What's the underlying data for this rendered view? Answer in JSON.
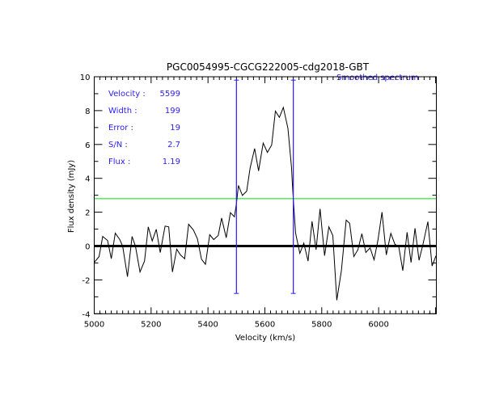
{
  "chart_data": {
    "type": "line",
    "title": "PGC0054995-CGCG222005-cdg2018-GBT",
    "xlabel": "Velocity (km/s)",
    "ylabel": "Flux density (mJy)",
    "xlim": [
      5000,
      6203
    ],
    "ylim": [
      -4,
      10
    ],
    "x_ticks": [
      5000,
      5200,
      5400,
      5600,
      5800,
      6000
    ],
    "y_ticks": [
      -4,
      -2,
      0,
      2,
      4,
      6,
      8,
      10
    ],
    "legend": "Smoothed spectrum",
    "legend_placement": "top-right",
    "colors": {
      "spectrum": "#000000",
      "markers": "#2a1cf0",
      "threshold": "#00e000",
      "baseline": "#000000"
    },
    "baseline": 0,
    "threshold_level": 2.8,
    "marker_lines": [
      5500,
      5700
    ],
    "marker_ends": [
      -2.8,
      9.8
    ],
    "annotations": [
      {
        "label": "Velocity :",
        "value": "5599"
      },
      {
        "label": "Width :",
        "value": "199"
      },
      {
        "label": "Error :",
        "value": "19"
      },
      {
        "label": "S/N :",
        "value": "2.7"
      },
      {
        "label": "Flux :",
        "value": "1.19"
      }
    ],
    "series": [
      {
        "name": "Smoothed spectrum",
        "x": [
          5000,
          5017,
          5030,
          5047,
          5060,
          5074,
          5090,
          5100,
          5117,
          5133,
          5145,
          5161,
          5177,
          5190,
          5204,
          5218,
          5232,
          5249,
          5262,
          5275,
          5290,
          5303,
          5318,
          5332,
          5349,
          5363,
          5377,
          5391,
          5406,
          5420,
          5436,
          5448,
          5464,
          5479,
          5493,
          5500,
          5507,
          5521,
          5536,
          5548,
          5564,
          5578,
          5594,
          5609,
          5624,
          5637,
          5651,
          5665,
          5681,
          5694,
          5697,
          5701,
          5708,
          5723,
          5737,
          5752,
          5766,
          5780,
          5794,
          5810,
          5825,
          5839,
          5853,
          5869,
          5886,
          5898,
          5913,
          5927,
          5941,
          5955,
          5970,
          5984,
          5998,
          6012,
          6027,
          6043,
          6057,
          6071,
          6085,
          6100,
          6114,
          6128,
          6142,
          6156,
          6173,
          6188,
          6202
        ],
        "y": [
          -0.97,
          -0.62,
          0.57,
          0.33,
          -0.75,
          0.76,
          0.38,
          -0.02,
          -1.81,
          0.57,
          -0.02,
          -1.53,
          -0.89,
          1.13,
          0.3,
          0.99,
          -0.38,
          1.18,
          1.13,
          -1.53,
          -0.18,
          -0.52,
          -0.75,
          1.29,
          0.94,
          0.43,
          -0.78,
          -1.08,
          0.67,
          0.38,
          0.62,
          1.65,
          0.49,
          1.97,
          1.73,
          2.5,
          3.58,
          2.99,
          3.24,
          4.6,
          5.76,
          4.44,
          6.08,
          5.53,
          5.97,
          7.97,
          7.6,
          8.19,
          6.95,
          4.6,
          3.56,
          2.5,
          0.78,
          -0.43,
          0.17,
          -0.89,
          1.46,
          -0.22,
          2.19,
          -0.57,
          1.13,
          0.62,
          -3.2,
          -1.45,
          1.53,
          1.34,
          -0.62,
          -0.22,
          0.73,
          -0.38,
          -0.11,
          -0.81,
          0.38,
          2.0,
          -0.52,
          0.75,
          0.11,
          -0.06,
          -1.45,
          0.81,
          -0.97,
          1.05,
          -0.84,
          0.11,
          1.44,
          -1.18,
          -0.57
        ]
      }
    ]
  }
}
